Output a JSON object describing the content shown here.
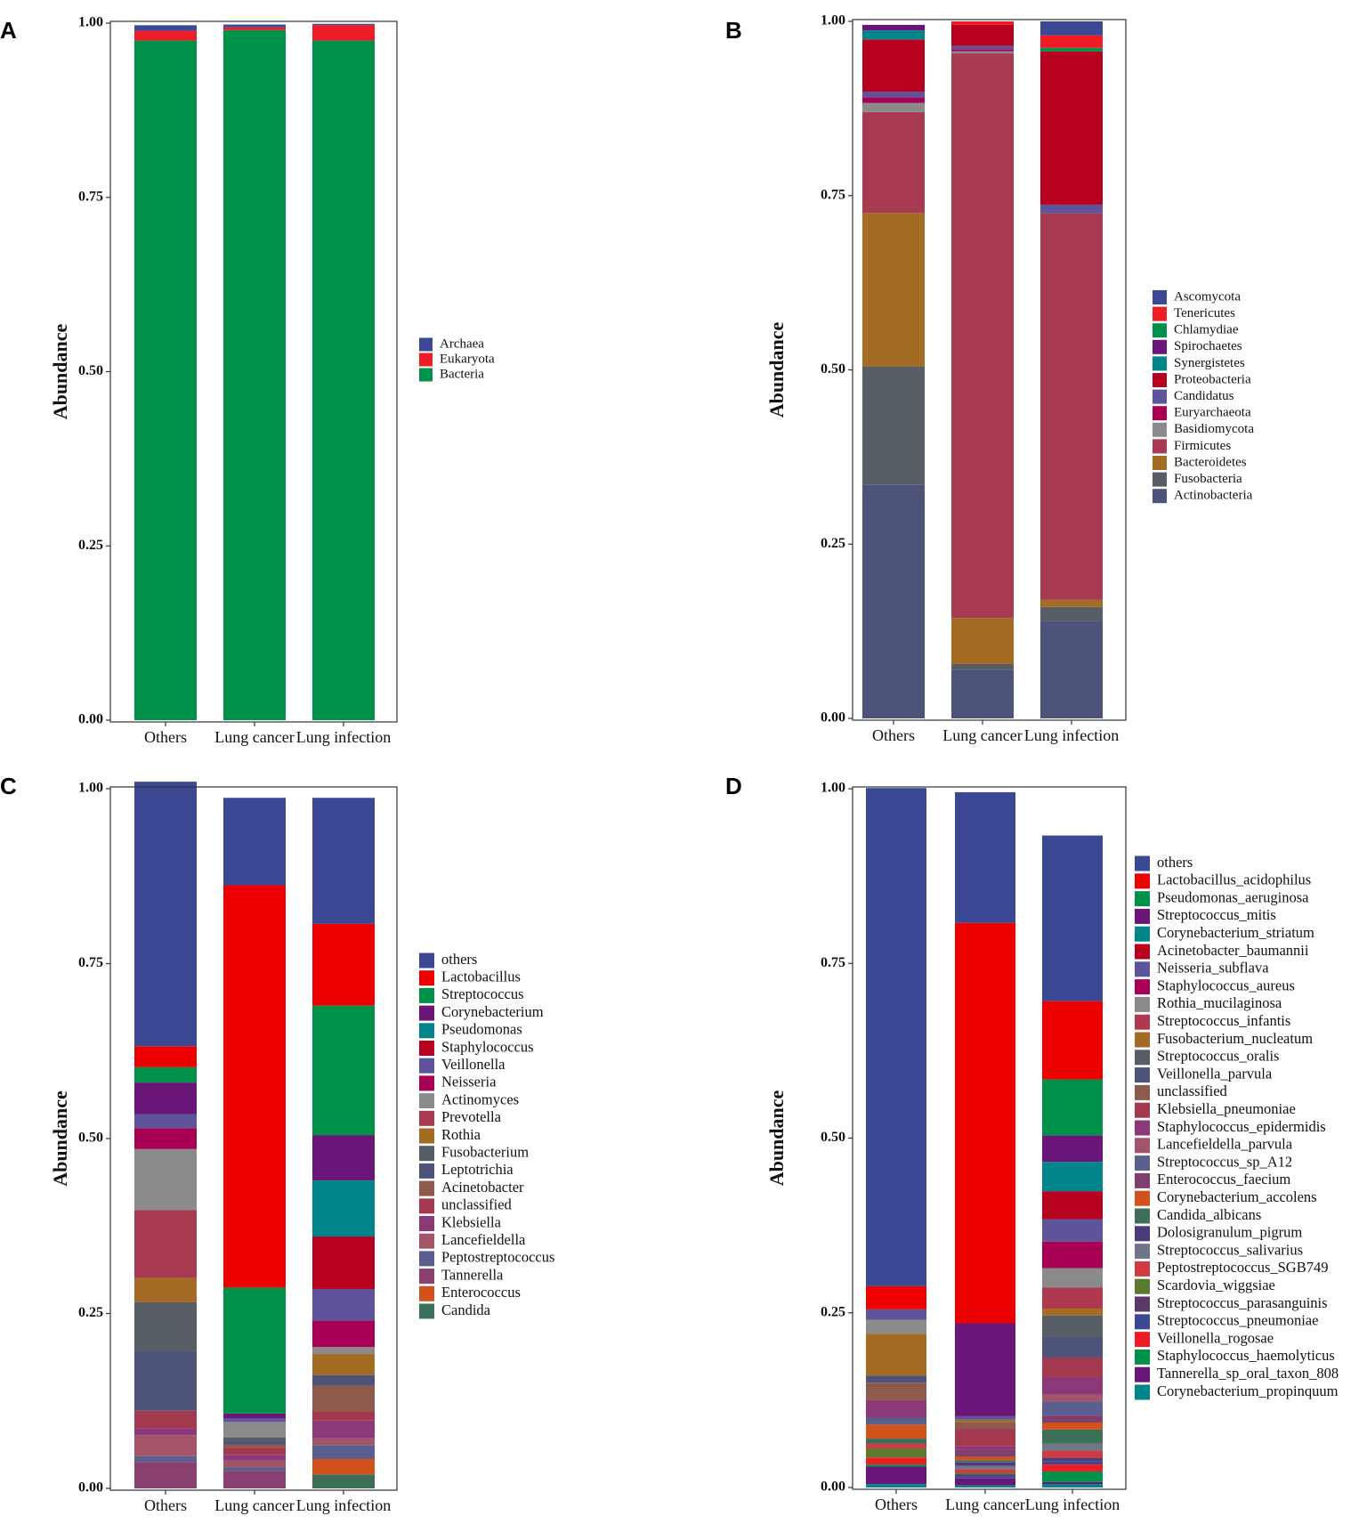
{
  "chart_data": [
    {
      "panel": "A",
      "type": "bar",
      "stacked": true,
      "ylabel": "Abundance",
      "ylim": [
        0,
        1
      ],
      "yticks": [
        "0.00",
        "0.25",
        "0.50",
        "0.75",
        "1.00"
      ],
      "categories": [
        "Others",
        "Lung cancer",
        "Lung infection"
      ],
      "series": [
        {
          "name": "Bacteria",
          "color": "#00914b",
          "values": [
            0.975,
            0.99,
            0.975
          ]
        },
        {
          "name": "Eukaryota",
          "color": "#ee1c25",
          "values": [
            0.014,
            0.004,
            0.022
          ]
        },
        {
          "name": "Archaea",
          "color": "#3b4994",
          "values": [
            0.008,
            0.004,
            0.002
          ]
        }
      ],
      "legend": [
        "Archaea",
        "Eukaryota",
        "Bacteria"
      ]
    },
    {
      "panel": "B",
      "type": "bar",
      "stacked": true,
      "ylabel": "Abundance",
      "ylim": [
        0,
        1
      ],
      "yticks": [
        "0.00",
        "0.25",
        "0.50",
        "0.75",
        "1.00"
      ],
      "categories": [
        "Others",
        "Lung cancer",
        "Lung infection"
      ],
      "series": [
        {
          "name": "Actinobacteria",
          "color": "#4e537a",
          "values": [
            0.335,
            0.07,
            0.14
          ]
        },
        {
          "name": "Fusobacteria",
          "color": "#575d64",
          "values": [
            0.17,
            0.008,
            0.02
          ]
        },
        {
          "name": "Bacteroidetes",
          "color": "#a46b25",
          "values": [
            0.22,
            0.066,
            0.01
          ]
        },
        {
          "name": "Firmicutes",
          "color": "#a83a52",
          "values": [
            0.145,
            0.81,
            0.555
          ]
        },
        {
          "name": "Basidiomycota",
          "color": "#8a8a8a",
          "values": [
            0.013,
            0.003,
            0.0
          ]
        },
        {
          "name": "Euryarchaeota",
          "color": "#a80055",
          "values": [
            0.008,
            0.003,
            0.0
          ]
        },
        {
          "name": "Candidatus",
          "color": "#5e549c",
          "values": [
            0.008,
            0.005,
            0.012
          ]
        },
        {
          "name": "Proteobacteria",
          "color": "#b8001f",
          "values": [
            0.075,
            0.03,
            0.22
          ]
        },
        {
          "name": "Synergistetes",
          "color": "#00868a",
          "values": [
            0.013,
            0.0,
            0.0
          ]
        },
        {
          "name": "Spirochaetes",
          "color": "#6a1678",
          "values": [
            0.008,
            0.0,
            0.0
          ]
        },
        {
          "name": "Chlamydiae",
          "color": "#00914b",
          "values": [
            0.0,
            0.0,
            0.005
          ]
        },
        {
          "name": "Tenericutes",
          "color": "#ee1c25",
          "values": [
            0.0,
            0.005,
            0.018
          ]
        },
        {
          "name": "Ascomycota",
          "color": "#3b4994",
          "values": [
            0.0,
            0.0,
            0.02
          ]
        }
      ],
      "legend": [
        "Ascomycota",
        "Tenericutes",
        "Chlamydiae",
        "Spirochaetes",
        "Synergistetes",
        "Proteobacteria",
        "Candidatus",
        "Euryarchaeota",
        "Basidiomycota",
        "Firmicutes",
        "Bacteroidetes",
        "Fusobacteria",
        "Actinobacteria"
      ]
    },
    {
      "panel": "C",
      "type": "bar",
      "stacked": true,
      "ylabel": "Abundance",
      "ylim": [
        0,
        1
      ],
      "yticks": [
        "0.00",
        "0.25",
        "0.50",
        "0.75",
        "1.00"
      ],
      "categories": [
        "Others",
        "Lung cancer",
        "Lung infection"
      ],
      "series": [
        {
          "name": "Tannerella",
          "color": "#8a3f71",
          "values": [
            0.038,
            0.025,
            0.0
          ]
        },
        {
          "name": "Candida",
          "color": "#3d7059",
          "values": [
            0.0,
            0.0,
            0.02
          ]
        },
        {
          "name": "Enterococcus",
          "color": "#d2521e",
          "values": [
            0.0,
            0.0,
            0.022
          ]
        },
        {
          "name": "Peptostreptococcus",
          "color": "#5b5f8f",
          "values": [
            0.008,
            0.005,
            0.02
          ]
        },
        {
          "name": "Lancefieldella",
          "color": "#a45468",
          "values": [
            0.03,
            0.01,
            0.01
          ]
        },
        {
          "name": "Klebsiella",
          "color": "#8d3879",
          "values": [
            0.01,
            0.008,
            0.025
          ]
        },
        {
          "name": "unclassified",
          "color": "#a3394f",
          "values": [
            0.025,
            0.01,
            0.013
          ]
        },
        {
          "name": "Acinetobacter",
          "color": "#8e5a4c",
          "values": [
            0.0,
            0.005,
            0.037
          ]
        },
        {
          "name": "Leptotrichia",
          "color": "#4e537a",
          "values": [
            0.085,
            0.005,
            0.015
          ]
        },
        {
          "name": "Fusobacterium",
          "color": "#575d64",
          "values": [
            0.07,
            0.005,
            0.0
          ]
        },
        {
          "name": "Rothia",
          "color": "#a46b25",
          "values": [
            0.035,
            0.0,
            0.03
          ]
        },
        {
          "name": "Prevotella",
          "color": "#a83a52",
          "values": [
            0.097,
            0.0,
            0.0
          ]
        },
        {
          "name": "Actinomyces",
          "color": "#8a8a8a",
          "values": [
            0.087,
            0.022,
            0.01
          ]
        },
        {
          "name": "Neisseria",
          "color": "#a80055",
          "values": [
            0.03,
            0.0,
            0.038
          ]
        },
        {
          "name": "Veillonella",
          "color": "#5e549c",
          "values": [
            0.02,
            0.005,
            0.045
          ]
        },
        {
          "name": "Staphylococcus",
          "color": "#b8001f",
          "values": [
            0.0,
            0.0,
            0.075
          ]
        },
        {
          "name": "Pseudomonas",
          "color": "#00868a",
          "values": [
            0.0,
            0.0,
            0.08
          ]
        },
        {
          "name": "Corynebacterium",
          "color": "#6a1678",
          "values": [
            0.045,
            0.007,
            0.065
          ]
        },
        {
          "name": "Streptococcus",
          "color": "#00914b",
          "values": [
            0.022,
            0.18,
            0.185
          ]
        },
        {
          "name": "Lactobacillus",
          "color": "#ee0000",
          "values": [
            0.03,
            0.575,
            0.117
          ]
        },
        {
          "name": "others",
          "color": "#3b4994",
          "values": [
            0.378,
            0.125,
            0.18
          ]
        }
      ],
      "legend": [
        "others",
        "Lactobacillus",
        "Streptococcus",
        "Corynebacterium",
        "Pseudomonas",
        "Staphylococcus",
        "Veillonella",
        "Neisseria",
        "Actinomyces",
        "Prevotella",
        "Rothia",
        "Fusobacterium",
        "Leptotrichia",
        "Acinetobacter",
        "unclassified",
        "Klebsiella",
        "Lancefieldella",
        "Peptostreptococcus",
        "Tannerella",
        "Enterococcus",
        "Candida"
      ]
    },
    {
      "panel": "D",
      "type": "bar",
      "stacked": true,
      "ylabel": "Abundance",
      "ylim": [
        0,
        1
      ],
      "yticks": [
        "0.00",
        "0.25",
        "0.50",
        "0.75",
        "1.00"
      ],
      "categories": [
        "Others",
        "Lung cancer",
        "Lung infection"
      ],
      "series": [
        {
          "name": "Corynebacterium_propinquum",
          "color": "#00868a",
          "values": [
            0.005,
            0.003,
            0.005
          ]
        },
        {
          "name": "Tannerella_sp_oral_taxon_808",
          "color": "#6a1678",
          "values": [
            0.025,
            0.01,
            0.003
          ]
        },
        {
          "name": "Staphylococcus_haemolyticus",
          "color": "#00914b",
          "values": [
            0.003,
            0.0,
            0.015
          ]
        },
        {
          "name": "Veillonella_rogosae",
          "color": "#ee1c25",
          "values": [
            0.01,
            0.0,
            0.01
          ]
        },
        {
          "name": "Streptococcus_pneumoniae",
          "color": "#3b4994",
          "values": [
            0.0,
            0.003,
            0.005
          ]
        },
        {
          "name": "Streptococcus_parasanguinis",
          "color": "#5a3a6b",
          "values": [
            0.0,
            0.003,
            0.005
          ]
        },
        {
          "name": "Scardovia_wiggsiae",
          "color": "#5c7a2e",
          "values": [
            0.013,
            0.002,
            0.0
          ]
        },
        {
          "name": "Peptostreptococcus_SGB749",
          "color": "#d03a43",
          "values": [
            0.007,
            0.005,
            0.01
          ]
        },
        {
          "name": "Streptococcus_salivarius",
          "color": "#6e7688",
          "values": [
            0.0,
            0.005,
            0.01
          ]
        },
        {
          "name": "Dolosigranulum_pigrum",
          "color": "#4d3a7e",
          "values": [
            0.0,
            0.005,
            0.0
          ]
        },
        {
          "name": "Candida_albicans",
          "color": "#3d7059",
          "values": [
            0.007,
            0.003,
            0.02
          ]
        },
        {
          "name": "Corynebacterium_accolens",
          "color": "#d2521e",
          "values": [
            0.02,
            0.005,
            0.01
          ]
        },
        {
          "name": "Enterococcus_faecium",
          "color": "#7f3f6e",
          "values": [
            0.0,
            0.01,
            0.01
          ]
        },
        {
          "name": "Streptococcus_sp_A12",
          "color": "#5b5f8f",
          "values": [
            0.01,
            0.0,
            0.02
          ]
        },
        {
          "name": "Lancefieldella_parvula",
          "color": "#a45468",
          "values": [
            0.0,
            0.0,
            0.01
          ]
        },
        {
          "name": "Staphylococcus_epidermidis",
          "color": "#8d3879",
          "values": [
            0.025,
            0.005,
            0.025
          ]
        },
        {
          "name": "Klebsiella_pneumoniae",
          "color": "#a3394f",
          "values": [
            0.0,
            0.025,
            0.028
          ]
        },
        {
          "name": "unclassified",
          "color": "#8e5a4c",
          "values": [
            0.025,
            0.01,
            0.0
          ]
        },
        {
          "name": "Veillonella_parvula",
          "color": "#4e537a",
          "values": [
            0.01,
            0.0,
            0.03
          ]
        },
        {
          "name": "Streptococcus_oralis",
          "color": "#575d64",
          "values": [
            0.0,
            0.0,
            0.03
          ]
        },
        {
          "name": "Fusobacterium_nucleatum",
          "color": "#a46b25",
          "values": [
            0.06,
            0.003,
            0.01
          ]
        },
        {
          "name": "Streptococcus_infantis",
          "color": "#b0384f",
          "values": [
            0.0,
            0.0,
            0.03
          ]
        },
        {
          "name": "Rothia_mucilaginosa",
          "color": "#8a8a8a",
          "values": [
            0.02,
            0.0,
            0.028
          ]
        },
        {
          "name": "Staphylococcus_aureus",
          "color": "#a80055",
          "values": [
            0.0,
            0.0,
            0.038
          ]
        },
        {
          "name": "Neisseria_subflava",
          "color": "#5e549c",
          "values": [
            0.015,
            0.005,
            0.032
          ]
        },
        {
          "name": "Acinetobacter_baumannii",
          "color": "#b8001f",
          "values": [
            0.0,
            0.0,
            0.04
          ]
        },
        {
          "name": "Corynebacterium_striatum",
          "color": "#00868a",
          "values": [
            0.0,
            0.0,
            0.042
          ]
        },
        {
          "name": "Streptococcus_mitis",
          "color": "#6a1678",
          "values": [
            0.0,
            0.133,
            0.038
          ]
        },
        {
          "name": "Pseudomonas_aeruginosa",
          "color": "#00914b",
          "values": [
            0.0,
            0.0,
            0.08
          ]
        },
        {
          "name": "Lactobacillus_acidophilus",
          "color": "#ee0000",
          "values": [
            0.033,
            0.573,
            0.112
          ]
        },
        {
          "name": "others",
          "color": "#3b4994",
          "values": [
            0.713,
            0.187,
            0.237
          ]
        }
      ],
      "legend": [
        "others",
        "Lactobacillus_acidophilus",
        "Pseudomonas_aeruginosa",
        "Streptococcus_mitis",
        "Corynebacterium_striatum",
        "Acinetobacter_baumannii",
        "Neisseria_subflava",
        "Staphylococcus_aureus",
        "Rothia_mucilaginosa",
        "Streptococcus_infantis",
        "Fusobacterium_nucleatum",
        "Streptococcus_oralis",
        "Veillonella_parvula",
        "unclassified",
        "Klebsiella_pneumoniae",
        "Staphylococcus_epidermidis",
        "Lancefieldella_parvula",
        "Streptococcus_sp_A12",
        "Enterococcus_faecium",
        "Corynebacterium_accolens",
        "Candida_albicans",
        "Dolosigranulum_pigrum",
        "Streptococcus_salivarius",
        "Peptostreptococcus_SGB749",
        "Scardovia_wiggsiae",
        "Streptococcus_parasanguinis",
        "Streptococcus_pneumoniae",
        "Veillonella_rogosae",
        "Staphylococcus_haemolyticus",
        "Tannerella_sp_oral_taxon_808",
        "Corynebacterium_propinquum"
      ]
    }
  ]
}
